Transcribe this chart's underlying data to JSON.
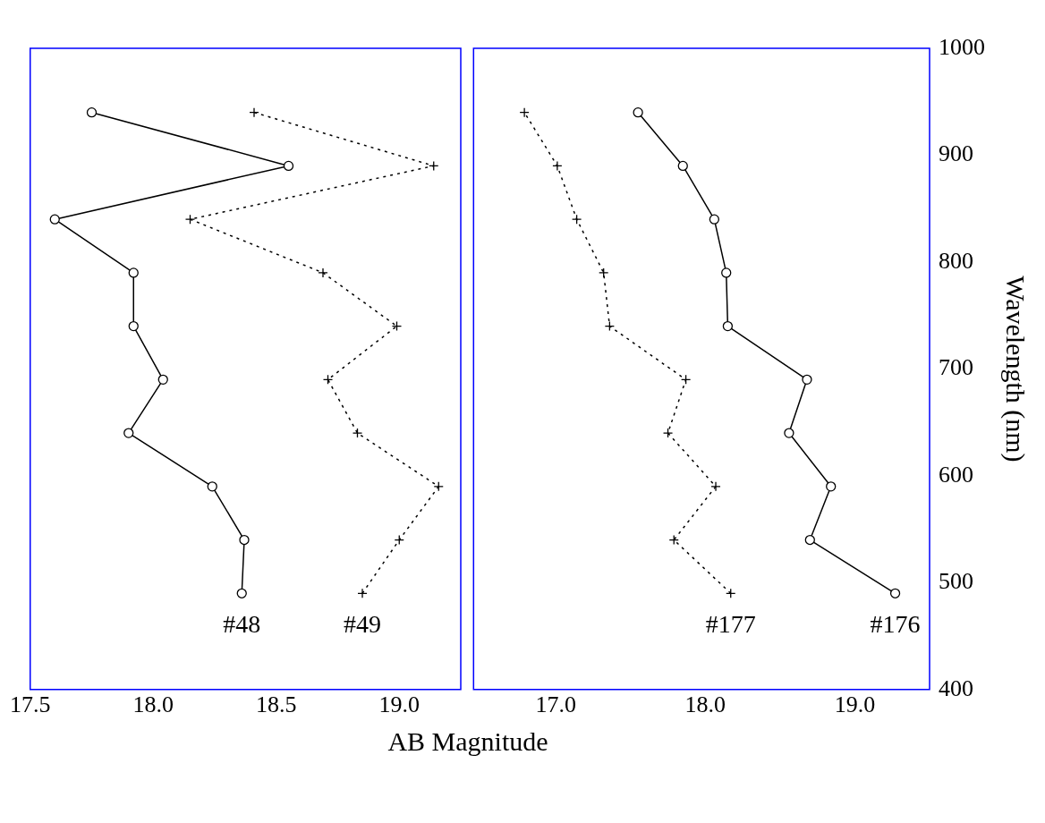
{
  "chart_data": [
    {
      "type": "line",
      "xlabel": "AB Magnitude",
      "series": [
        {
          "name": "#48",
          "color": "#000000",
          "marker": "circle",
          "line_style": "solid",
          "x": [
            18.36,
            18.37,
            18.24,
            17.9,
            18.04,
            17.92,
            17.92,
            17.6,
            18.55,
            17.75
          ],
          "values": [
            490,
            540,
            590,
            640,
            690,
            740,
            790,
            840,
            890,
            940
          ]
        },
        {
          "name": "#49",
          "color": "#000000",
          "marker": "cross",
          "line_style": "dotted",
          "x": [
            18.85,
            19.0,
            19.16,
            18.83,
            18.71,
            18.99,
            18.69,
            18.15,
            19.14,
            18.41
          ],
          "values": [
            490,
            540,
            590,
            640,
            690,
            740,
            790,
            840,
            890,
            940
          ]
        }
      ],
      "xlim": [
        17.5,
        19.25
      ],
      "xticks": [
        17.5,
        {
          "value": 18,
          "label": "18.0"
        },
        18.5,
        {
          "value": 19,
          "label": "19.0"
        }
      ],
      "ylim": [
        400,
        1000
      ],
      "yticks": [
        400,
        500,
        600,
        700,
        800,
        900,
        1000
      ],
      "tick_labels": "x",
      "grid": false
    },
    {
      "type": "line",
      "ylabel": "Wavelength (nm)",
      "series": [
        {
          "name": "#177",
          "color": "#000000",
          "marker": "cross",
          "line_style": "dotted",
          "x": [
            18.17,
            17.79,
            18.07,
            17.75,
            17.87,
            17.36,
            17.32,
            17.14,
            17.01,
            16.79
          ],
          "values": [
            490,
            540,
            590,
            640,
            690,
            740,
            790,
            840,
            890,
            940
          ]
        },
        {
          "name": "#176",
          "color": "#000000",
          "marker": "circle",
          "line_style": "solid",
          "x": [
            19.27,
            18.7,
            18.84,
            18.56,
            18.68,
            18.15,
            18.14,
            18.06,
            17.85,
            17.55
          ],
          "values": [
            490,
            540,
            590,
            640,
            690,
            740,
            790,
            840,
            890,
            940
          ]
        }
      ],
      "xlim": [
        16.45,
        19.5
      ],
      "xticks": [
        {
          "value": 17,
          "label": "17.0"
        },
        {
          "value": 18,
          "label": "18.0"
        },
        {
          "value": 19,
          "label": "19.0"
        }
      ],
      "ylim": [
        400,
        1000
      ],
      "yticks": [
        400,
        500,
        600,
        700,
        800,
        900,
        1000
      ],
      "grid": false
    }
  ]
}
